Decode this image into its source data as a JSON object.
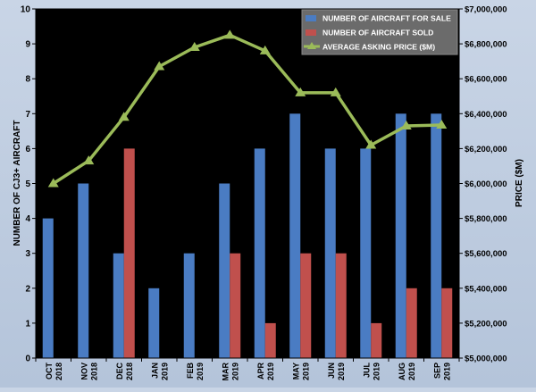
{
  "chart_data": {
    "type": "bar",
    "categories": [
      [
        "OCT",
        "2018"
      ],
      [
        "NOV",
        "2018"
      ],
      [
        "DEC",
        "2018"
      ],
      [
        "JAN",
        "2019"
      ],
      [
        "FEB",
        "2019"
      ],
      [
        "MAR",
        "2019"
      ],
      [
        "APR",
        "2019"
      ],
      [
        "MAY",
        "2019"
      ],
      [
        "JUN",
        "2019"
      ],
      [
        "JUL",
        "2019"
      ],
      [
        "AUG",
        "2019"
      ],
      [
        "SEP",
        "2019"
      ]
    ],
    "series": [
      {
        "name": "NUMBER OF AIRCRAFT FOR SALE",
        "kind": "bar",
        "axis": "left",
        "color": "#4a7cc3",
        "values": [
          4,
          5,
          3,
          2,
          3,
          5,
          6,
          7,
          6,
          6,
          7,
          7
        ]
      },
      {
        "name": "NUMBER OF AIRCRAFT SOLD",
        "kind": "bar",
        "axis": "left",
        "color": "#c0504d",
        "values": [
          0,
          0,
          6,
          0,
          0,
          3,
          1,
          3,
          3,
          1,
          2,
          2
        ]
      },
      {
        "name": "AVERAGE ASKING PRICE ($M)",
        "kind": "line",
        "axis": "right",
        "color": "#9bbb59",
        "values": [
          6000000,
          6130000,
          6380000,
          6670000,
          6780000,
          6850000,
          6760000,
          6520000,
          6520000,
          6220000,
          6330000,
          6335000
        ]
      }
    ],
    "ylabel": "NUMBER OF CJ3+ AIRCRAFT",
    "ylim": [
      0,
      10
    ],
    "yticks": [
      "0",
      "1",
      "2",
      "3",
      "4",
      "5",
      "6",
      "7",
      "8",
      "9",
      "10"
    ],
    "y2label": "PRICE ($M)",
    "y2lim": [
      5000000,
      7000000
    ],
    "y2ticks": [
      "$5,000,000",
      "$5,200,000",
      "$5,400,000",
      "$5,600,000",
      "$5,800,000",
      "$6,000,000",
      "$6,200,000",
      "$6,400,000",
      "$6,600,000",
      "$6,800,000",
      "$7,000,000"
    ],
    "grid": false,
    "legend_position": "top-right",
    "plot_background": "#000000"
  }
}
